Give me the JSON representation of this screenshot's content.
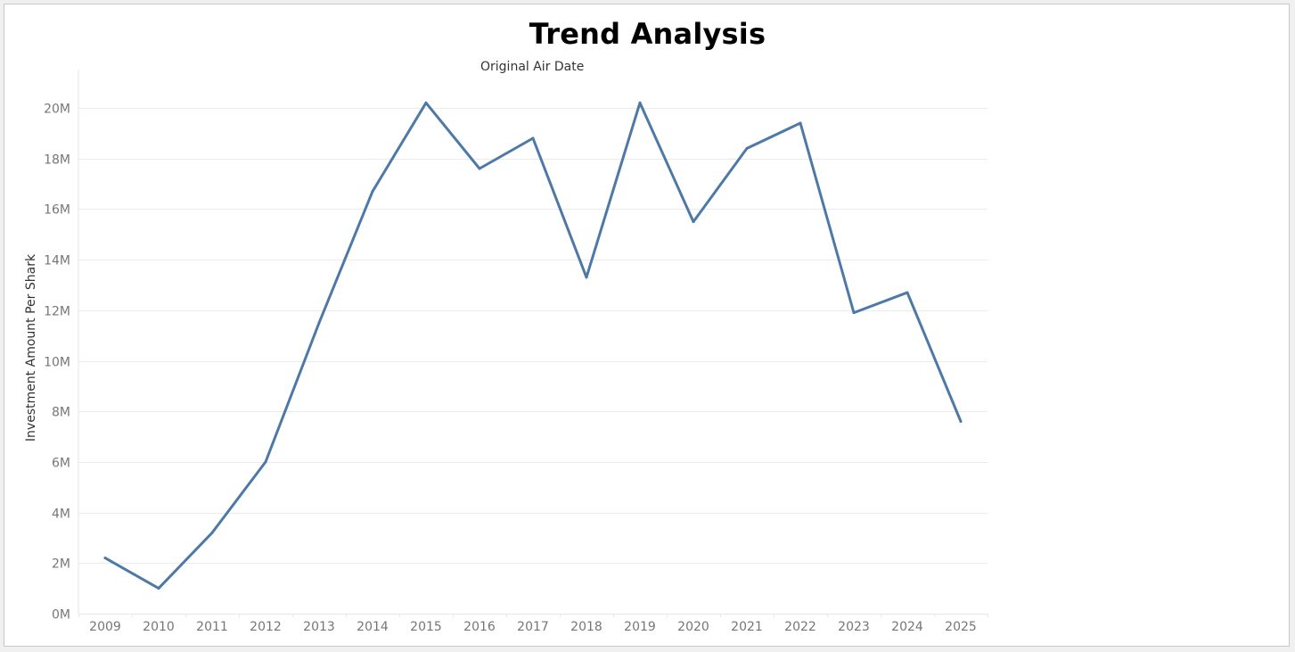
{
  "chart_data": {
    "type": "line",
    "title": "Trend Analysis",
    "xlabel": "Original Air Date",
    "ylabel": "Investment Amount Per Shark",
    "x": [
      "2009",
      "2010",
      "2011",
      "2012",
      "2013",
      "2014",
      "2015",
      "2016",
      "2017",
      "2018",
      "2019",
      "2020",
      "2021",
      "2022",
      "2023",
      "2024",
      "2025"
    ],
    "series": [
      {
        "values": [
          2.2,
          1.0,
          3.2,
          6.0,
          11.5,
          16.7,
          20.2,
          17.6,
          18.8,
          13.3,
          20.2,
          15.5,
          18.4,
          19.4,
          11.9,
          12.7,
          7.6
        ]
      }
    ],
    "y_unit": "M",
    "yticks": [
      0,
      2,
      4,
      6,
      8,
      10,
      12,
      14,
      16,
      18,
      20
    ],
    "ytick_labels": [
      "0M",
      "2M",
      "4M",
      "6M",
      "8M",
      "10M",
      "12M",
      "14M",
      "16M",
      "18M",
      "20M"
    ],
    "ylim": [
      0,
      21.5
    ],
    "grid": true,
    "line_color": "#4e79a7",
    "grid_color": "#ebebeb"
  }
}
